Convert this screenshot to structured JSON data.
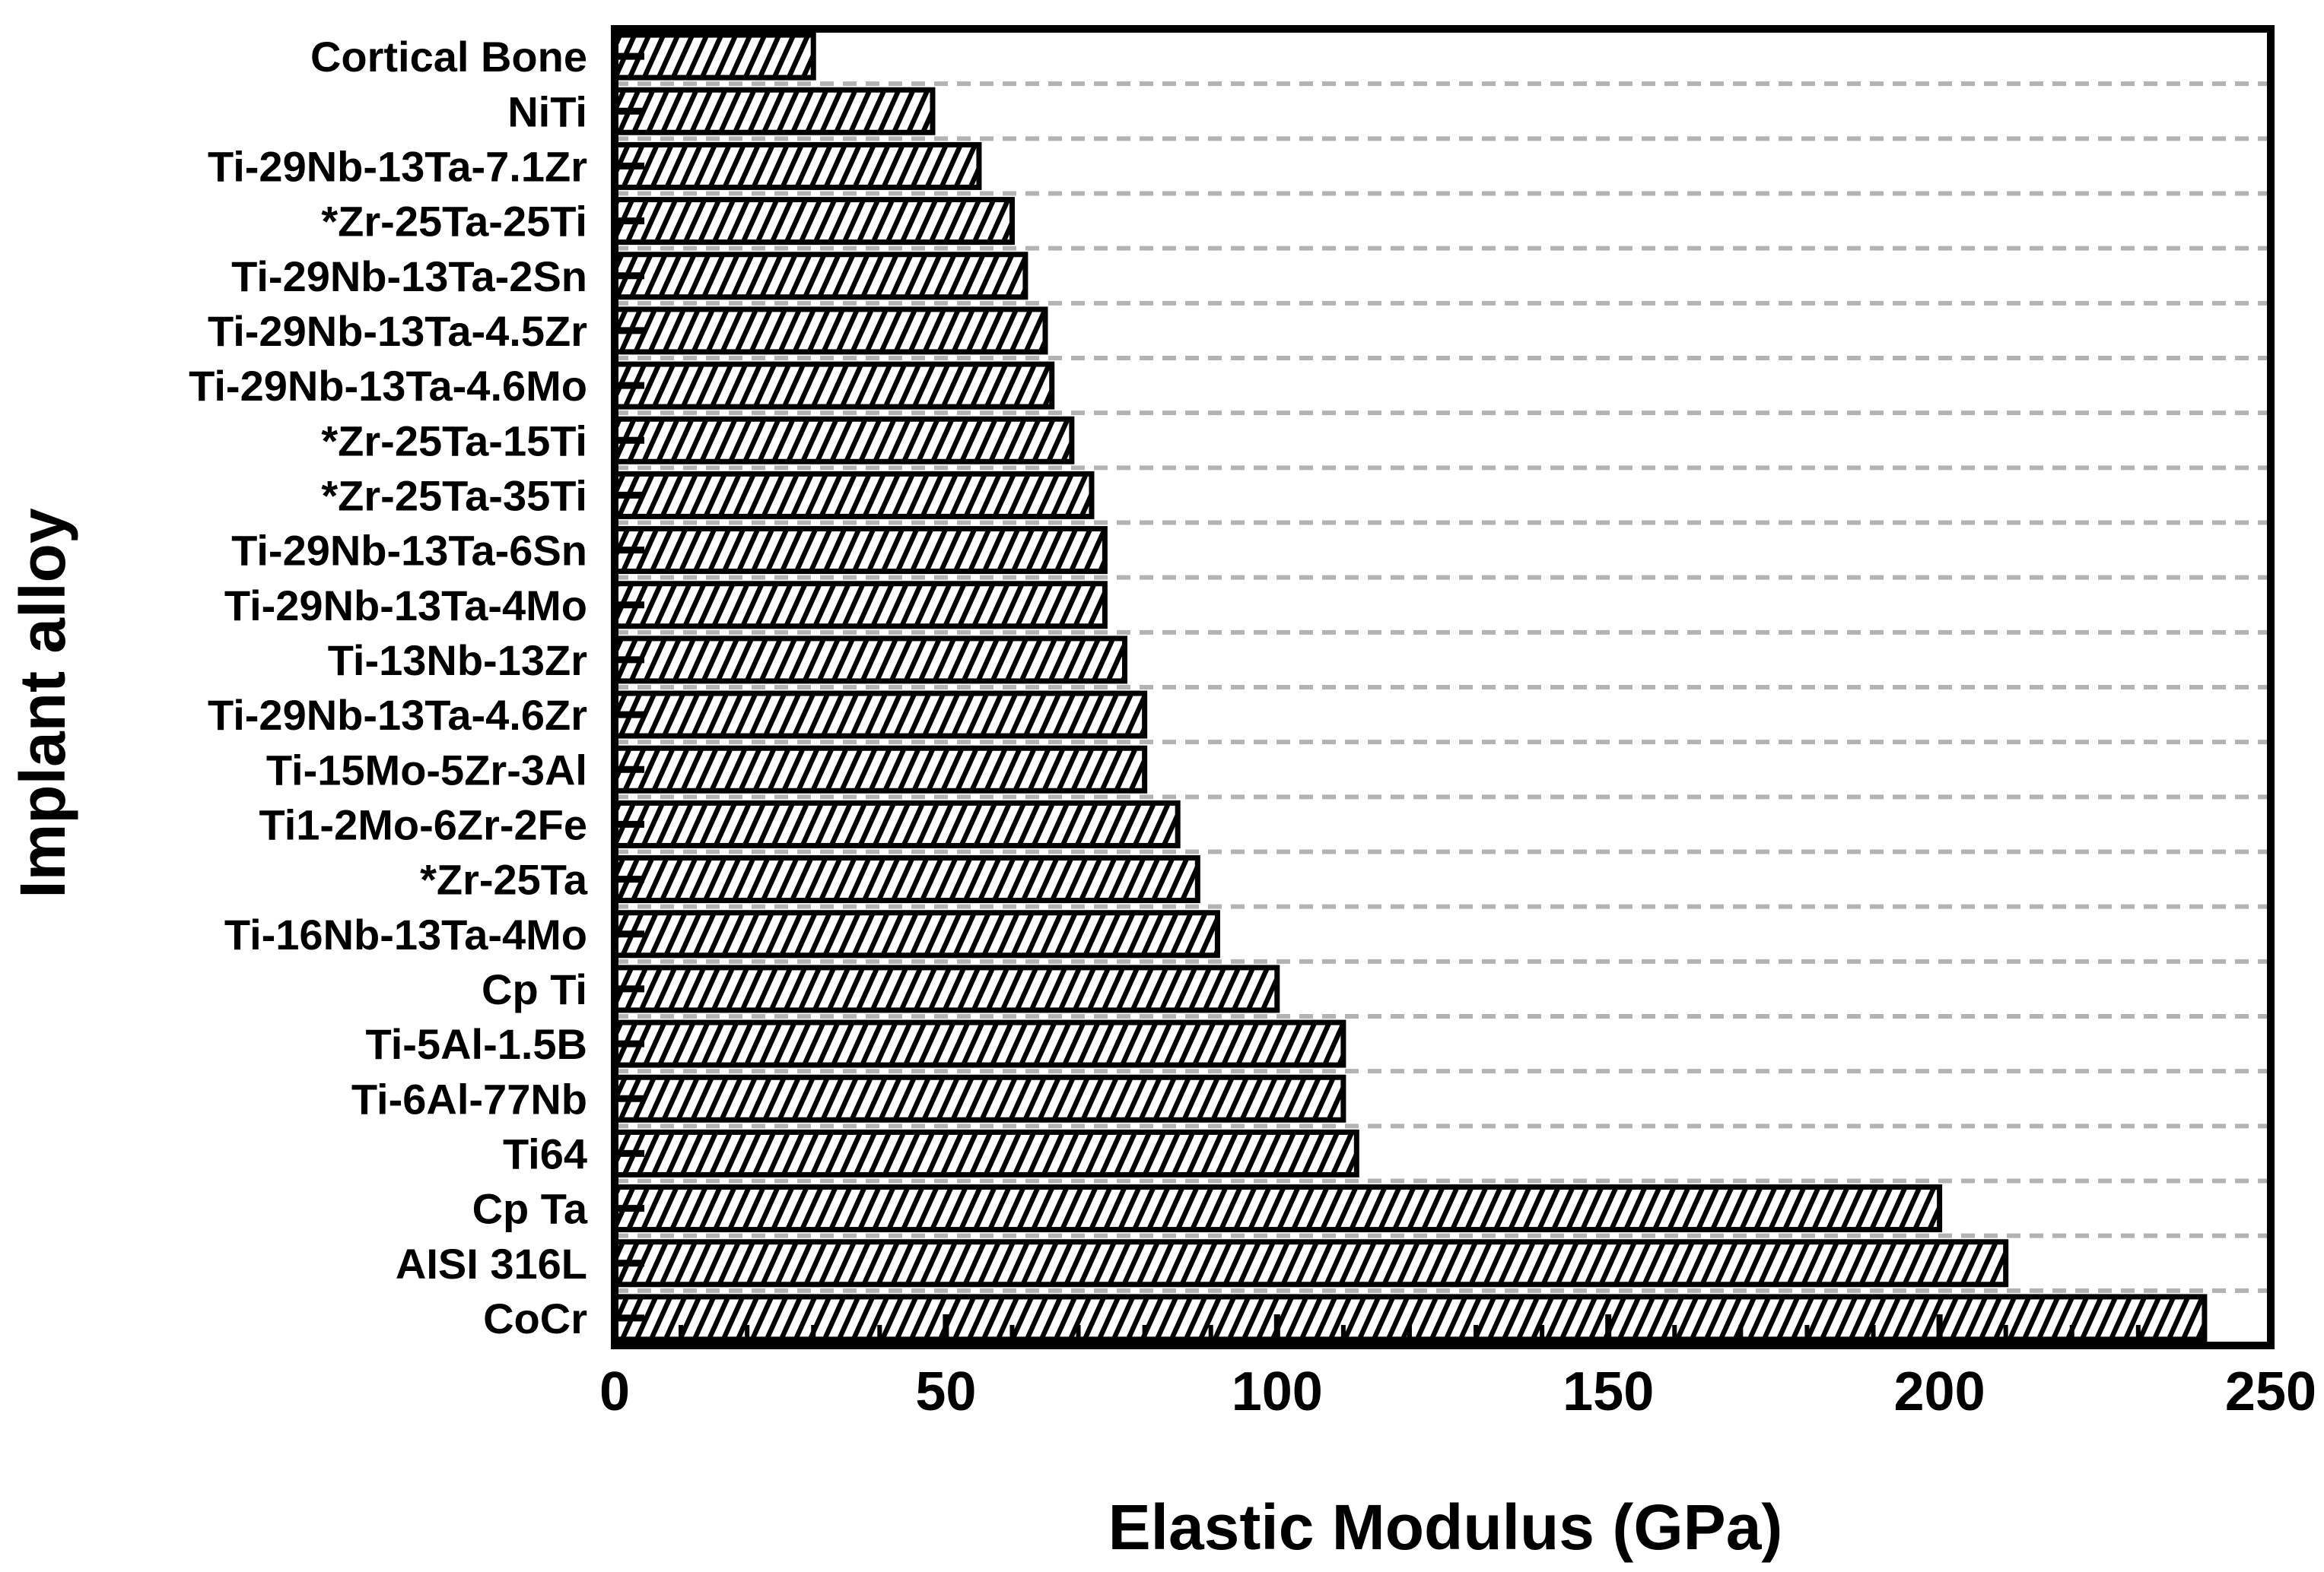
{
  "chart_data": {
    "type": "bar",
    "orientation": "horizontal",
    "title": "",
    "xlabel": "Elastic Modulus (GPa)",
    "ylabel": "Implant alloy",
    "unit": "GPa",
    "categories": [
      "Cortical Bone",
      "NiTi",
      "Ti-29Nb-13Ta-7.1Zr",
      "*Zr-25Ta-25Ti",
      "Ti-29Nb-13Ta-2Sn",
      "Ti-29Nb-13Ta-4.5Zr",
      "Ti-29Nb-13Ta-4.6Mo",
      "*Zr-25Ta-15Ti",
      "*Zr-25Ta-35Ti",
      "Ti-29Nb-13Ta-6Sn",
      "Ti-29Nb-13Ta-4Mo",
      "Ti-13Nb-13Zr",
      "Ti-29Nb-13Ta-4.6Zr",
      "Ti-15Mo-5Zr-3Al",
      "Ti1-2Mo-6Zr-2Fe",
      "*Zr-25Ta",
      "Ti-16Nb-13Ta-4Mo",
      "Cp Ti",
      "Ti-5Al-1.5B",
      "Ti-6Al-77Nb",
      "Ti64",
      "Cp Ta",
      "AISI 316L",
      "CoCr"
    ],
    "values": [
      30,
      48,
      55,
      60,
      62,
      65,
      66,
      69,
      72,
      74,
      74,
      77,
      80,
      80,
      85,
      88,
      91,
      100,
      110,
      110,
      112,
      200,
      210,
      240
    ],
    "xlim": [
      0,
      250
    ],
    "xticks": [
      "0",
      "50",
      "100",
      "150",
      "200",
      "250"
    ],
    "xtick_values": [
      0,
      50,
      100,
      150,
      200,
      250
    ],
    "minor_tick_step": 10,
    "grid": "dashed-horizontal-between-categories",
    "legend": "none",
    "bar_style": "white fill with black diagonal hatch, black border",
    "colors": {
      "bar_border": "#000000",
      "hatch": "#000000",
      "grid": "#b3b3b3",
      "frame": "#000000",
      "background": "#ffffff",
      "text": "#000000"
    }
  }
}
